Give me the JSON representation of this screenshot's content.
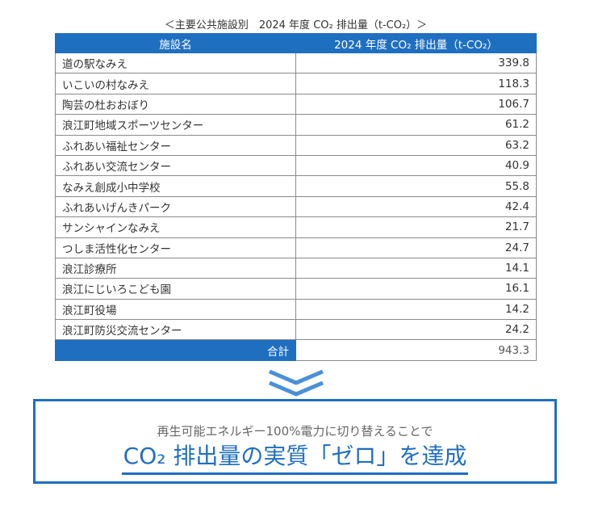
{
  "caption": "＜主要公共施設別　2024 年度 CO₂ 排出量（t-CO₂）＞",
  "table": {
    "headers": [
      "施設名",
      "2024 年度 CO₂ 排出量（t-CO₂）"
    ],
    "rows": [
      {
        "name": "道の駅なみえ",
        "value": "339.8"
      },
      {
        "name": "いこいの村なみえ",
        "value": "118.3"
      },
      {
        "name": "陶芸の杜おおぼり",
        "value": "106.7"
      },
      {
        "name": "浪江町地域スポーツセンター",
        "value": "61.2"
      },
      {
        "name": "ふれあい福祉センター",
        "value": "63.2"
      },
      {
        "name": "ふれあい交流センター",
        "value": "40.9"
      },
      {
        "name": "なみえ創成小中学校",
        "value": "55.8"
      },
      {
        "name": "ふれあいげんきパーク",
        "value": "42.4"
      },
      {
        "name": "サンシャインなみえ",
        "value": "21.7"
      },
      {
        "name": "つしま活性化センター",
        "value": "24.7"
      },
      {
        "name": "浪江診療所",
        "value": "14.1"
      },
      {
        "name": "浪江にじいろこども園",
        "value": "16.1"
      },
      {
        "name": "浪江町役場",
        "value": "14.2"
      },
      {
        "name": "浪江町防災交流センター",
        "value": "24.2"
      }
    ],
    "total_label": "合計",
    "total_value": "943.3"
  },
  "arrow_icon": "double-chevron-down-icon",
  "result": {
    "subtitle": "再生可能エネルギー100%電力に切り替えることで",
    "headline": "CO₂ 排出量の実質「ゼロ」を達成"
  },
  "colors": {
    "accent": "#1f6fc1",
    "chevron": "#4a90d9"
  }
}
